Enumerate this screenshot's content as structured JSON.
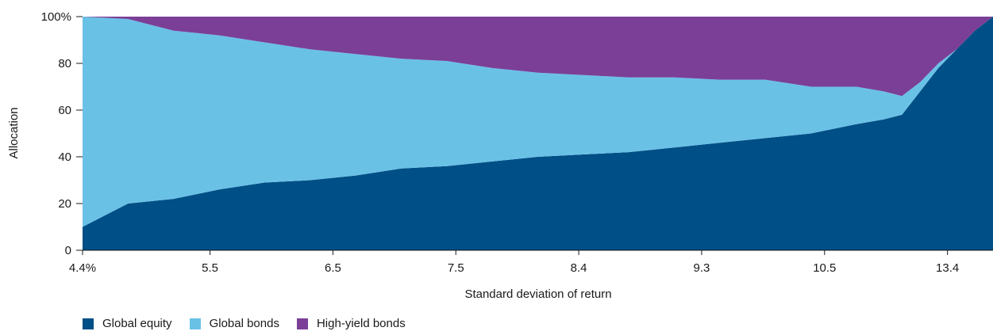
{
  "chart_data": {
    "type": "area",
    "stacked": true,
    "title": "",
    "xlabel": "Standard deviation of return",
    "ylabel": "Allocation",
    "ylim": [
      0,
      100
    ],
    "y_ticks": [
      "0",
      "20",
      "40",
      "60",
      "80",
      "100%"
    ],
    "x_tick_labels": [
      "4.4%",
      "5.5",
      "6.5",
      "7.5",
      "8.4",
      "9.3",
      "10.5",
      "13.4"
    ],
    "x_tick_fractions": [
      0.0,
      0.14,
      0.275,
      0.41,
      0.545,
      0.68,
      0.815,
      0.95
    ],
    "grid": false,
    "legend_position": "bottom-left",
    "x_fraction": [
      0.0,
      0.05,
      0.1,
      0.15,
      0.2,
      0.25,
      0.3,
      0.35,
      0.4,
      0.45,
      0.5,
      0.55,
      0.6,
      0.65,
      0.7,
      0.75,
      0.8,
      0.85,
      0.88,
      0.9,
      0.92,
      0.94,
      0.96,
      0.98,
      1.0
    ],
    "series": [
      {
        "name": "Global equity",
        "color": "#004f86",
        "values": [
          10,
          20,
          22,
          26,
          29,
          30,
          32,
          35,
          36,
          38,
          40,
          41,
          42,
          44,
          46,
          48,
          50,
          54,
          56,
          58,
          68,
          78,
          86,
          94,
          100
        ]
      },
      {
        "name": "Global bonds",
        "color": "#6ac1e6",
        "values": [
          90,
          79,
          72,
          66,
          60,
          56,
          52,
          47,
          45,
          40,
          36,
          34,
          32,
          30,
          27,
          25,
          20,
          16,
          12,
          8,
          4,
          2,
          0,
          0,
          0
        ]
      },
      {
        "name": "High-yield bonds",
        "color": "#7b3f98",
        "values": [
          0,
          1,
          6,
          8,
          11,
          14,
          16,
          18,
          19,
          22,
          24,
          25,
          26,
          26,
          27,
          27,
          30,
          30,
          32,
          34,
          28,
          20,
          14,
          6,
          0
        ]
      }
    ]
  },
  "legend": {
    "items": [
      {
        "label": "Global equity",
        "color": "#004f86"
      },
      {
        "label": "Global bonds",
        "color": "#6ac1e6"
      },
      {
        "label": "High-yield bonds",
        "color": "#7b3f98"
      }
    ]
  }
}
